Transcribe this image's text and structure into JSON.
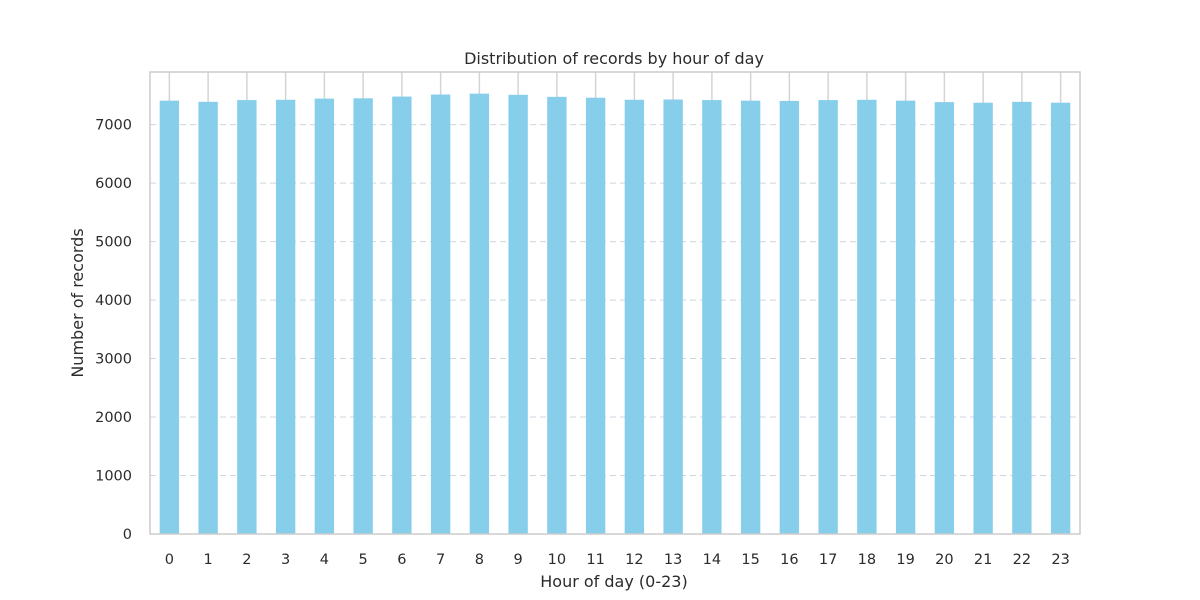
{
  "chart_data": {
    "type": "bar",
    "title": "Distribution of records by hour of day",
    "xlabel": "Hour of day (0-23)",
    "ylabel": "Number of records",
    "categories": [
      "0",
      "1",
      "2",
      "3",
      "4",
      "5",
      "6",
      "7",
      "8",
      "9",
      "10",
      "11",
      "12",
      "13",
      "14",
      "15",
      "16",
      "17",
      "18",
      "19",
      "20",
      "21",
      "22",
      "23"
    ],
    "values": [
      7410,
      7390,
      7420,
      7425,
      7445,
      7450,
      7480,
      7515,
      7530,
      7510,
      7475,
      7460,
      7425,
      7430,
      7420,
      7410,
      7405,
      7420,
      7425,
      7410,
      7385,
      7375,
      7390,
      7375
    ],
    "yticks": [
      0,
      1000,
      2000,
      3000,
      4000,
      5000,
      6000,
      7000
    ],
    "ytick_labels": [
      "0",
      "1000",
      "2000",
      "3000",
      "4000",
      "5000",
      "6000",
      "7000"
    ],
    "ylim": [
      0,
      7900
    ],
    "grid": "y, dashed",
    "colors": {
      "bar": "#87ceeb",
      "grid": "#cfd6dc",
      "spine": "#cccccc",
      "text": "#2b2b2b"
    }
  }
}
